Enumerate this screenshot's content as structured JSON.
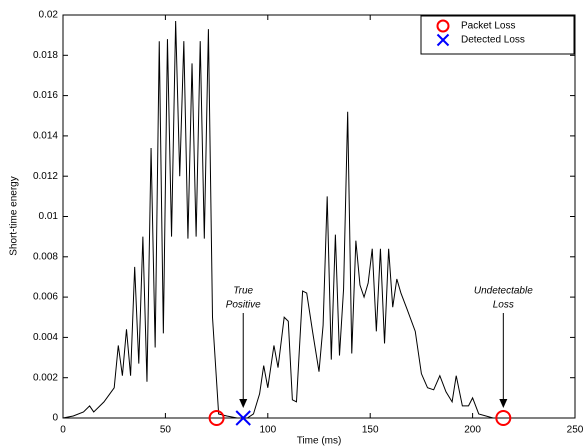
{
  "chart_data": {
    "type": "line",
    "xlabel": "Time (ms)",
    "ylabel": "Short-time energy",
    "xlim": [
      0,
      250
    ],
    "ylim": [
      0,
      0.02
    ],
    "xticks": [
      0,
      50,
      100,
      150,
      200,
      250
    ],
    "yticks": [
      0,
      0.002,
      0.004,
      0.006,
      0.008,
      0.01,
      0.012,
      0.014,
      0.016,
      0.018,
      0.02
    ],
    "legend": "northeast",
    "series": [
      {
        "color": "#000000",
        "x": [
          0,
          5,
          10,
          13,
          15,
          20,
          25,
          27,
          29,
          31,
          33,
          35,
          37,
          39,
          41,
          43,
          45,
          47,
          49,
          51,
          53,
          55,
          57,
          59,
          61,
          63,
          65,
          67,
          69,
          71,
          73,
          76,
          80,
          85,
          90,
          93,
          96,
          98,
          100,
          103,
          105,
          108,
          110,
          112,
          114,
          117,
          119,
          122,
          125,
          127,
          129,
          131,
          133,
          135,
          137,
          139,
          141,
          143,
          145,
          147,
          149,
          151,
          153,
          155,
          157,
          159,
          161,
          163,
          165,
          168,
          172,
          175,
          178,
          181,
          184,
          187,
          190,
          192,
          195,
          198,
          200,
          203,
          210,
          250
        ],
        "values": [
          0,
          0.0001,
          0.0003,
          0.0006,
          0.0003,
          0.0008,
          0.0015,
          0.0036,
          0.0021,
          0.0044,
          0.0021,
          0.0075,
          0.0027,
          0.009,
          0.0018,
          0.0134,
          0.0035,
          0.0187,
          0.0042,
          0.0188,
          0.009,
          0.0197,
          0.012,
          0.0187,
          0.0089,
          0.0176,
          0.009,
          0.0187,
          0.0089,
          0.0193,
          0.005,
          0.0002,
          0.0001,
          0,
          0,
          0.0002,
          0.0012,
          0.0026,
          0.0015,
          0.0036,
          0.0025,
          0.005,
          0.0048,
          0.0009,
          0.0008,
          0.0063,
          0.0062,
          0.0042,
          0.0023,
          0.0046,
          0.011,
          0.0029,
          0.0091,
          0.0031,
          0.0064,
          0.0152,
          0.0032,
          0.0088,
          0.0066,
          0.006,
          0.0067,
          0.0084,
          0.0043,
          0.0084,
          0.0037,
          0.0084,
          0.0055,
          0.0069,
          0.0062,
          0.0054,
          0.0043,
          0.0022,
          0.0015,
          0.0014,
          0.0021,
          0.0013,
          0.0008,
          0.0021,
          0.0006,
          0.0006,
          0.001,
          0.0002,
          0,
          0
        ]
      },
      {
        "name": "Packet Loss",
        "marker": "o",
        "color": "#ff0000",
        "x": [
          75,
          215
        ],
        "values": [
          0,
          0
        ]
      },
      {
        "name": "Detected Loss",
        "marker": "x",
        "color": "#0000ff",
        "x": [
          88
        ],
        "values": [
          0
        ]
      }
    ],
    "annotations": [
      {
        "text": [
          "True",
          "Positive"
        ],
        "x": 88,
        "y": 0
      },
      {
        "text": [
          "Undetectable",
          "Loss"
        ],
        "x": 215,
        "y": 0
      }
    ]
  }
}
